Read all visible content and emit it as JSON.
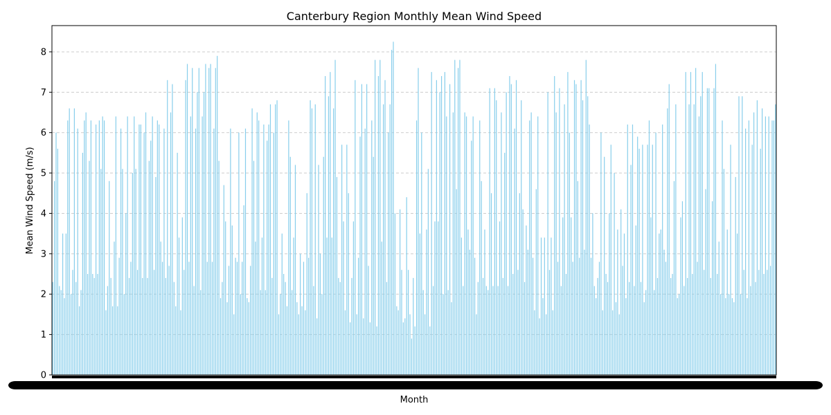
{
  "chart_data": {
    "type": "bar",
    "title": "Canterbury Region Monthly Mean Wind Speed",
    "xlabel": "Month",
    "ylabel": "Mean Wind Speed (m/s)",
    "ylim": [
      0,
      8.65
    ],
    "yticks": [
      "0",
      "1",
      "2",
      "3",
      "4",
      "5",
      "6",
      "7",
      "8"
    ],
    "grid": "horizontal-dashed",
    "legend": "none",
    "bar_color": "#87ceeb",
    "categories_note_visible": false,
    "series": [
      {
        "values": [
          2.3,
          4.8,
          6.0,
          5.6,
          2.2,
          2.1,
          3.5,
          1.9,
          3.5,
          6.3,
          6.6,
          2.0,
          2.6,
          6.6,
          2.3,
          6.1,
          1.7,
          2.1,
          5.5,
          6.3,
          6.5,
          2.5,
          5.3,
          6.3,
          2.5,
          2.4,
          6.2,
          2.5,
          6.3,
          5.1,
          6.4,
          6.3,
          1.6,
          2.2,
          4.8,
          2.4,
          1.7,
          3.3,
          6.4,
          1.7,
          2.9,
          6.1,
          5.1,
          2.0,
          4.0,
          6.4,
          2.4,
          2.8,
          5.0,
          6.4,
          5.1,
          2.6,
          6.2,
          6.2,
          2.4,
          6.0,
          6.5,
          2.4,
          5.3,
          5.8,
          6.4,
          2.6,
          4.9,
          6.3,
          6.2,
          3.3,
          2.8,
          6.1,
          2.4,
          7.3,
          2.7,
          6.5,
          7.2,
          2.3,
          1.7,
          5.5,
          3.4,
          1.6,
          3.9,
          2.6,
          7.3,
          7.7,
          2.8,
          6.4,
          7.6,
          2.2,
          6.1,
          7.0,
          7.6,
          2.1,
          6.4,
          7.0,
          7.7,
          2.8,
          7.6,
          7.7,
          2.8,
          6.1,
          7.6,
          7.9,
          5.3,
          1.9,
          2.3,
          4.7,
          3.8,
          1.8,
          2.7,
          6.1,
          3.7,
          1.5,
          2.9,
          2.8,
          6.0,
          2.0,
          2.8,
          4.2,
          6.1,
          1.9,
          1.8,
          2.7,
          6.6,
          5.3,
          3.3,
          6.5,
          6.3,
          2.1,
          3.4,
          6.2,
          2.1,
          5.8,
          6.2,
          6.7,
          2.4,
          6.0,
          6.7,
          6.8,
          1.5,
          2.0,
          3.5,
          2.5,
          2.3,
          1.7,
          6.3,
          5.4,
          2.1,
          3.4,
          5.2,
          1.8,
          1.5,
          3.0,
          1.7,
          2.8,
          1.6,
          4.5,
          2.9,
          6.8,
          6.6,
          2.2,
          6.7,
          1.4,
          5.2,
          3.0,
          2.0,
          5.4,
          7.4,
          3.4,
          6.9,
          7.5,
          3.4,
          6.6,
          7.8,
          4.9,
          2.4,
          2.3,
          5.7,
          3.8,
          1.6,
          5.7,
          4.5,
          1.3,
          2.4,
          3.8,
          7.3,
          1.5,
          2.9,
          5.9,
          7.2,
          1.4,
          6.1,
          7.2,
          2.7,
          1.3,
          6.3,
          5.4,
          7.8,
          1.2,
          7.4,
          7.8,
          3.3,
          6.7,
          7.3,
          2.3,
          6.0,
          6.7,
          8.05,
          8.25,
          4.0,
          1.7,
          1.6,
          4.1,
          2.6,
          1.3,
          1.4,
          4.4,
          2.6,
          1.5,
          0.9,
          2.4,
          1.2,
          6.3,
          7.6,
          3.5,
          6.0,
          2.1,
          1.5,
          3.6,
          5.1,
          1.2,
          7.5,
          2.2,
          3.8,
          7.3,
          3.8,
          7.0,
          7.4,
          2.0,
          7.5,
          6.4,
          2.1,
          7.2,
          1.8,
          6.5,
          7.8,
          4.6,
          7.6,
          7.8,
          3.4,
          2.2,
          6.5,
          6.4,
          3.6,
          3.1,
          5.8,
          6.4,
          2.9,
          1.5,
          2.3,
          6.3,
          4.8,
          2.4,
          3.6,
          2.2,
          2.1,
          7.1,
          4.5,
          2.2,
          7.1,
          6.8,
          2.2,
          3.8,
          6.5,
          2.4,
          5.5,
          7.0,
          2.2,
          7.4,
          7.2,
          2.5,
          6.1,
          7.3,
          2.6,
          4.5,
          6.8,
          4.1,
          2.3,
          3.7,
          3.1,
          6.3,
          6.5,
          2.9,
          1.6,
          4.6,
          6.4,
          1.4,
          3.4,
          1.9,
          3.4,
          1.5,
          7.0,
          2.6,
          3.4,
          1.6,
          7.4,
          6.5,
          2.8,
          7.1,
          2.2,
          3.9,
          6.7,
          2.5,
          7.5,
          6.0,
          3.9,
          2.8,
          7.3,
          7.2,
          4.8,
          2.9,
          7.3,
          6.8,
          3.1,
          7.8,
          6.9,
          6.2,
          2.9,
          4.0,
          2.2,
          1.9,
          2.4,
          2.8,
          6.0,
          1.6,
          5.4,
          2.5,
          2.3,
          4.0,
          5.7,
          1.6,
          5.0,
          1.8,
          3.6,
          1.5,
          4.1,
          2.7,
          3.5,
          1.9,
          6.2,
          2.3,
          5.2,
          6.2,
          2.2,
          3.7,
          5.9,
          5.6,
          2.3,
          5.7,
          1.8,
          2.1,
          5.7,
          6.3,
          3.9,
          5.7,
          2.1,
          6.0,
          2.4,
          3.5,
          3.6,
          6.2,
          3.1,
          2.8,
          6.6,
          7.2,
          2.4,
          2.5,
          4.8,
          6.7,
          1.9,
          2.0,
          3.9,
          4.3,
          2.2,
          7.5,
          2.4,
          6.7,
          7.5,
          2.5,
          6.7,
          7.6,
          2.8,
          6.4,
          6.9,
          7.5,
          2.6,
          4.6,
          7.1,
          7.1,
          2.4,
          4.3,
          7.1,
          7.7,
          2.5,
          3.3,
          2.0,
          6.3,
          5.1,
          1.9,
          3.6,
          2.0,
          5.7,
          1.9,
          1.8,
          4.9,
          3.5,
          6.9,
          2.0,
          6.9,
          2.6,
          6.1,
          1.9,
          6.3,
          2.2,
          5.7,
          6.5,
          2.3,
          6.8,
          2.6,
          5.6,
          6.6,
          2.5,
          6.4,
          2.6,
          6.4,
          2.7,
          6.3,
          6.3,
          6.7
        ]
      }
    ]
  }
}
